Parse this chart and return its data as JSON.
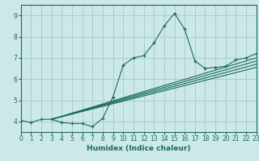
{
  "xlabel": "Humidex (Indice chaleur)",
  "xlim": [
    0,
    23
  ],
  "ylim": [
    3.5,
    9.5
  ],
  "xticks": [
    0,
    1,
    2,
    3,
    4,
    5,
    6,
    7,
    8,
    9,
    10,
    11,
    12,
    13,
    14,
    15,
    16,
    17,
    18,
    19,
    20,
    21,
    22,
    23
  ],
  "yticks": [
    4,
    5,
    6,
    7,
    8,
    9
  ],
  "bg_color": "#cce8e8",
  "grid_color": "#aacece",
  "line_color": "#1a6b5a",
  "data_x": [
    0,
    1,
    2,
    3,
    4,
    5,
    6,
    7,
    8,
    9,
    10,
    11,
    12,
    13,
    14,
    15,
    16,
    17,
    18,
    19,
    20,
    21,
    22,
    23
  ],
  "data_y": [
    4.05,
    3.95,
    4.1,
    4.1,
    3.95,
    3.9,
    3.9,
    3.75,
    4.15,
    5.15,
    6.65,
    7.0,
    7.1,
    7.7,
    8.5,
    9.1,
    8.35,
    6.85,
    6.5,
    6.55,
    6.6,
    6.9,
    7.0,
    7.2
  ],
  "reg_lines": [
    {
      "x": [
        3,
        23
      ],
      "y": [
        4.1,
        6.55
      ]
    },
    {
      "x": [
        3,
        23
      ],
      "y": [
        4.1,
        6.7
      ]
    },
    {
      "x": [
        3,
        23
      ],
      "y": [
        4.1,
        6.85
      ]
    },
    {
      "x": [
        3,
        23
      ],
      "y": [
        4.1,
        7.0
      ]
    }
  ]
}
